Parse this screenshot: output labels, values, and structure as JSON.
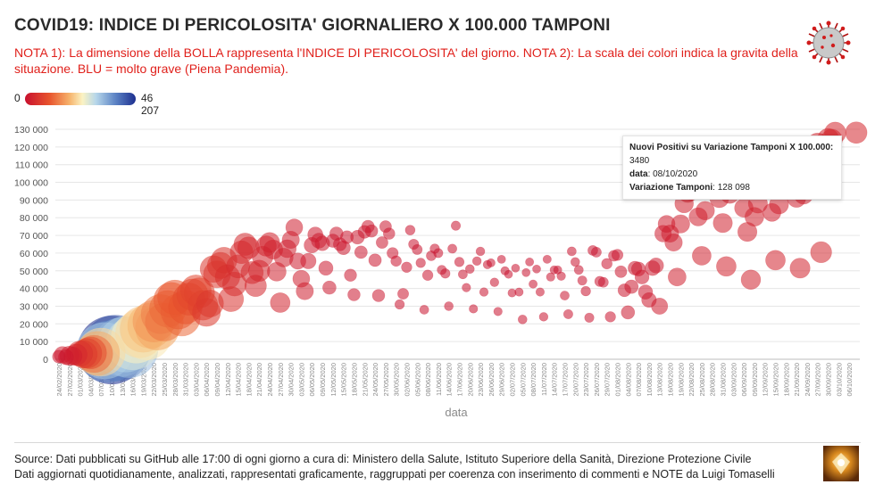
{
  "header": {
    "title": "COVID19: INDICE DI PERICOLOSITA' GIORNALIERO X 100.000 TAMPONI",
    "note": "NOTA 1): La dimensione della BOLLA rappresenta l'INDICE DI PERICOLOSITA' del giorno. NOTA 2): La scala dei colori indica la gravita della situazione. BLU = molto grave (Piena Pandemia)."
  },
  "color_legend": {
    "min": "0",
    "max": "46 207"
  },
  "tooltip": {
    "line1_label": "Nuovi Positivi su Variazione Tamponi X 100.000:",
    "line1_value": "3480",
    "line2_label": "data",
    "line2_value": "08/10/2020",
    "line3_label": "Variazione Tamponi",
    "line3_value": "128 098"
  },
  "footer": {
    "line1": "Source: Dati pubblicati su GitHub alle 17:00 di ogni giorno a cura di: Ministero della Salute, Istituto Superiore della Sanità, Direzione Protezione Civile",
    "line2": "Dati aggiornati quotidianamente, analizzati, rappresentati graficamente, raggruppati per coerenza con inserimento di commenti e NOTE da Luigi Tomaselli"
  },
  "icons": {
    "logo": "coronavirus-icon",
    "badge": "author-badge-icon"
  },
  "colors": {
    "title": "#2a2a2a",
    "note": "#e0201b",
    "low": "#c8102e",
    "high": "#1d2f8f"
  },
  "chart_data": {
    "type": "scatter",
    "subtype": "bubble",
    "xlabel": "data",
    "ylabel": "",
    "ylim": [
      0,
      130000
    ],
    "yticks": [
      0,
      10000,
      20000,
      30000,
      40000,
      50000,
      60000,
      70000,
      80000,
      90000,
      100000,
      110000,
      120000,
      130000
    ],
    "ytick_labels": [
      "0",
      "10 000",
      "20 000",
      "30 000",
      "40 000",
      "50 000",
      "60 000",
      "70 000",
      "80 000",
      "90 000",
      "100 000",
      "110 000",
      "120 000",
      "130 000"
    ],
    "x_start": "2020-02-24",
    "x_end": "2020-10-08",
    "xtick_labels": [
      "24/02/2020",
      "27/02/2020",
      "01/03/2020",
      "04/03/2020",
      "07/03/2020",
      "10/03/2020",
      "13/03/2020",
      "16/03/2020",
      "19/03/2020",
      "22/03/2020",
      "25/03/2020",
      "28/03/2020",
      "31/03/2020",
      "03/04/2020",
      "06/04/2020",
      "09/04/2020",
      "12/04/2020",
      "15/04/2020",
      "18/04/2020",
      "21/04/2020",
      "24/04/2020",
      "27/04/2020",
      "30/04/2020",
      "03/05/2020",
      "06/05/2020",
      "09/05/2020",
      "12/05/2020",
      "15/05/2020",
      "18/05/2020",
      "21/05/2020",
      "24/05/2020",
      "27/05/2020",
      "30/05/2020",
      "02/06/2020",
      "05/06/2020",
      "08/06/2020",
      "11/06/2020",
      "14/06/2020",
      "17/06/2020",
      "20/06/2020",
      "23/06/2020",
      "26/06/2020",
      "29/06/2020",
      "02/07/2020",
      "05/07/2020",
      "08/07/2020",
      "11/07/2020",
      "14/07/2020",
      "17/07/2020",
      "20/07/2020",
      "23/07/2020",
      "26/07/2020",
      "29/07/2020",
      "01/08/2020",
      "04/08/2020",
      "07/08/2020",
      "10/08/2020",
      "13/08/2020",
      "16/08/2020",
      "19/08/2020",
      "22/08/2020",
      "25/08/2020",
      "28/08/2020",
      "31/08/2020",
      "03/09/2020",
      "06/09/2020",
      "09/09/2020",
      "12/09/2020",
      "15/09/2020",
      "18/09/2020",
      "21/09/2020",
      "24/09/2020",
      "27/09/2020",
      "30/09/2020",
      "03/10/2020",
      "06/10/2020"
    ],
    "x_meaning": "date",
    "y_meaning": "Variazione Tamponi",
    "size_color_meaning": "Nuovi Positivi su Variazione Tamponi X 100.000",
    "color_range": [
      0,
      46207
    ],
    "points": [
      [
        "2020-02-24",
        1500,
        900
      ],
      [
        "2020-02-25",
        2500,
        1800
      ],
      [
        "2020-02-26",
        1200,
        1400
      ],
      [
        "2020-02-27",
        2000,
        2600
      ],
      [
        "2020-02-28",
        1800,
        2300
      ],
      [
        "2020-02-29",
        2600,
        3400
      ],
      [
        "2020-03-01",
        3200,
        5200
      ],
      [
        "2020-03-02",
        2800,
        6200
      ],
      [
        "2020-03-03",
        3400,
        7400
      ],
      [
        "2020-03-04",
        3600,
        8800
      ],
      [
        "2020-03-05",
        3000,
        12500
      ],
      [
        "2020-03-06",
        3300,
        18000
      ],
      [
        "2020-03-07",
        4000,
        22000
      ],
      [
        "2020-03-08",
        4800,
        31000
      ],
      [
        "2020-03-09",
        4200,
        37000
      ],
      [
        "2020-03-10",
        5200,
        46207
      ],
      [
        "2020-03-11",
        6500,
        42000
      ],
      [
        "2020-03-12",
        5500,
        39000
      ],
      [
        "2020-03-13",
        7000,
        34000
      ],
      [
        "2020-03-14",
        8500,
        30000
      ],
      [
        "2020-03-15",
        5800,
        32000
      ],
      [
        "2020-03-16",
        9000,
        27000
      ],
      [
        "2020-03-17",
        12000,
        24000
      ],
      [
        "2020-03-18",
        14500,
        22000
      ],
      [
        "2020-03-19",
        17000,
        20000
      ],
      [
        "2020-03-20",
        13500,
        23000
      ],
      [
        "2020-03-21",
        19000,
        19000
      ],
      [
        "2020-03-22",
        21500,
        16000
      ],
      [
        "2020-03-23",
        17500,
        17500
      ],
      [
        "2020-03-24",
        25500,
        14000
      ],
      [
        "2020-03-25",
        21000,
        13000
      ],
      [
        "2020-03-26",
        28500,
        12000
      ],
      [
        "2020-03-27",
        33500,
        11000
      ],
      [
        "2020-03-28",
        35000,
        10500
      ],
      [
        "2020-03-29",
        27000,
        11000
      ],
      [
        "2020-03-30",
        23500,
        12000
      ],
      [
        "2020-03-31",
        29500,
        10000
      ],
      [
        "2020-04-01",
        34000,
        9000
      ],
      [
        "2020-04-02",
        36500,
        8500
      ],
      [
        "2020-04-03",
        39000,
        8000
      ],
      [
        "2020-04-04",
        37500,
        7800
      ],
      [
        "2020-04-05",
        30500,
        7500
      ],
      [
        "2020-04-06",
        26500,
        6500
      ],
      [
        "2020-04-07",
        31500,
        6000
      ],
      [
        "2020-04-08",
        51000,
        5800
      ],
      [
        "2020-04-09",
        48000,
        6000
      ],
      [
        "2020-04-10",
        53000,
        5600
      ],
      [
        "2020-04-11",
        56000,
        5400
      ],
      [
        "2020-04-12",
        46500,
        4800
      ],
      [
        "2020-04-13",
        34000,
        5000
      ],
      [
        "2020-04-14",
        42500,
        4500
      ],
      [
        "2020-04-15",
        52500,
        4200
      ],
      [
        "2020-04-16",
        60500,
        4000
      ],
      [
        "2020-04-17",
        65000,
        3800
      ],
      [
        "2020-04-18",
        63000,
        3600
      ],
      [
        "2020-04-19",
        49000,
        3800
      ],
      [
        "2020-04-20",
        41500,
        3500
      ],
      [
        "2020-04-21",
        50000,
        3400
      ],
      [
        "2020-04-22",
        58000,
        3200
      ],
      [
        "2020-04-23",
        64000,
        3000
      ],
      [
        "2020-04-24",
        66000,
        2900
      ],
      [
        "2020-04-25",
        62000,
        2600
      ],
      [
        "2020-04-26",
        49500,
        2500
      ],
      [
        "2020-04-27",
        32000,
        2800
      ],
      [
        "2020-04-28",
        57500,
        2500
      ],
      [
        "2020-04-29",
        62500,
        2200
      ],
      [
        "2020-04-30",
        67500,
        2000
      ],
      [
        "2020-05-01",
        74500,
        1900
      ],
      [
        "2020-05-02",
        55500,
        1700
      ],
      [
        "2020-05-03",
        45500,
        1900
      ],
      [
        "2020-05-04",
        38500,
        2000
      ],
      [
        "2020-05-05",
        55500,
        1500
      ],
      [
        "2020-05-06",
        64500,
        1500
      ],
      [
        "2020-05-07",
        70500,
        1400
      ],
      [
        "2020-05-08",
        67000,
        1400
      ],
      [
        "2020-05-09",
        65500,
        1300
      ],
      [
        "2020-05-10",
        51500,
        1200
      ],
      [
        "2020-05-11",
        40500,
        1000
      ],
      [
        "2020-05-12",
        67000,
        1000
      ],
      [
        "2020-05-13",
        71000,
        1000
      ],
      [
        "2020-05-14",
        65000,
        950
      ],
      [
        "2020-05-15",
        63000,
        1100
      ],
      [
        "2020-05-16",
        69000,
        900
      ],
      [
        "2020-05-17",
        47500,
        780
      ],
      [
        "2020-05-18",
        36500,
        800
      ],
      [
        "2020-05-19",
        69000,
        1100
      ],
      [
        "2020-05-20",
        60500,
        850
      ],
      [
        "2020-05-21",
        72000,
        900
      ],
      [
        "2020-05-22",
        75000,
        850
      ],
      [
        "2020-05-23",
        72500,
        820
      ],
      [
        "2020-05-24",
        56000,
        850
      ],
      [
        "2020-05-25",
        36000,
        800
      ],
      [
        "2020-05-26",
        66000,
        700
      ],
      [
        "2020-05-27",
        75000,
        700
      ],
      [
        "2020-05-28",
        71000,
        650
      ],
      [
        "2020-05-29",
        60000,
        600
      ],
      [
        "2020-05-30",
        55500,
        500
      ],
      [
        "2020-05-31",
        31000,
        350
      ],
      [
        "2020-06-01",
        37000,
        550
      ],
      [
        "2020-06-02",
        52000,
        480
      ],
      [
        "2020-06-03",
        73000,
        380
      ],
      [
        "2020-06-04",
        65000,
        450
      ],
      [
        "2020-06-05",
        62000,
        430
      ],
      [
        "2020-06-06",
        54500,
        350
      ],
      [
        "2020-06-07",
        28000,
        300
      ],
      [
        "2020-06-08",
        47500,
        480
      ],
      [
        "2020-06-09",
        58500,
        400
      ],
      [
        "2020-06-10",
        62500,
        350
      ],
      [
        "2020-06-11",
        60000,
        320
      ],
      [
        "2020-06-12",
        50500,
        320
      ],
      [
        "2020-06-13",
        48500,
        350
      ],
      [
        "2020-06-14",
        30000,
        280
      ],
      [
        "2020-06-15",
        62500,
        300
      ],
      [
        "2020-06-16",
        75500,
        330
      ],
      [
        "2020-06-17",
        55000,
        350
      ],
      [
        "2020-06-18",
        48000,
        300
      ],
      [
        "2020-06-19",
        40500,
        250
      ],
      [
        "2020-06-20",
        51000,
        280
      ],
      [
        "2020-06-21",
        28500,
        240
      ],
      [
        "2020-06-22",
        55500,
        260
      ],
      [
        "2020-06-23",
        61000,
        270
      ],
      [
        "2020-06-24",
        38000,
        250
      ],
      [
        "2020-06-25",
        53500,
        240
      ],
      [
        "2020-06-26",
        54500,
        220
      ],
      [
        "2020-06-27",
        43500,
        260
      ],
      [
        "2020-06-28",
        27000,
        240
      ],
      [
        "2020-06-29",
        56500,
        210
      ],
      [
        "2020-06-30",
        50000,
        230
      ],
      [
        "2020-07-01",
        48000,
        200
      ],
      [
        "2020-07-02",
        37500,
        210
      ],
      [
        "2020-07-03",
        51500,
        200
      ],
      [
        "2020-07-04",
        38000,
        220
      ],
      [
        "2020-07-05",
        22500,
        280
      ],
      [
        "2020-07-06",
        49000,
        200
      ],
      [
        "2020-07-07",
        55000,
        210
      ],
      [
        "2020-07-08",
        42500,
        220
      ],
      [
        "2020-07-09",
        51000,
        200
      ],
      [
        "2020-07-10",
        38000,
        230
      ],
      [
        "2020-07-11",
        24000,
        260
      ],
      [
        "2020-07-12",
        56500,
        220
      ],
      [
        "2020-07-13",
        46500,
        240
      ],
      [
        "2020-07-14",
        50500,
        220
      ],
      [
        "2020-07-15",
        50500,
        220
      ],
      [
        "2020-07-16",
        47000,
        250
      ],
      [
        "2020-07-17",
        36000,
        300
      ],
      [
        "2020-07-18",
        25500,
        320
      ],
      [
        "2020-07-19",
        61000,
        290
      ],
      [
        "2020-07-20",
        55000,
        280
      ],
      [
        "2020-07-21",
        50500,
        300
      ],
      [
        "2020-07-22",
        44500,
        320
      ],
      [
        "2020-07-23",
        38500,
        360
      ],
      [
        "2020-07-24",
        23500,
        330
      ],
      [
        "2020-07-25",
        61500,
        400
      ],
      [
        "2020-07-26",
        60500,
        420
      ],
      [
        "2020-07-27",
        44000,
        450
      ],
      [
        "2020-07-28",
        43500,
        420
      ],
      [
        "2020-07-29",
        54000,
        500
      ],
      [
        "2020-07-30",
        24000,
        480
      ],
      [
        "2020-07-31",
        58500,
        550
      ],
      [
        "2020-08-01",
        59000,
        600
      ],
      [
        "2020-08-02",
        49500,
        700
      ],
      [
        "2020-08-03",
        39000,
        900
      ],
      [
        "2020-08-04",
        26500,
        1000
      ],
      [
        "2020-08-05",
        41000,
        1050
      ],
      [
        "2020-08-06",
        51500,
        1100
      ],
      [
        "2020-08-07",
        51000,
        1150
      ],
      [
        "2020-08-08",
        46500,
        1150
      ],
      [
        "2020-08-09",
        38000,
        1200
      ],
      [
        "2020-08-10",
        33500,
        1300
      ],
      [
        "2020-08-11",
        51500,
        1350
      ],
      [
        "2020-08-12",
        53000,
        1400
      ],
      [
        "2020-08-13",
        30000,
        1700
      ],
      [
        "2020-08-14",
        71000,
        1800
      ],
      [
        "2020-08-15",
        76500,
        1900
      ],
      [
        "2020-08-16",
        71000,
        2000
      ],
      [
        "2020-08-17",
        66000,
        2050
      ],
      [
        "2020-08-18",
        46500,
        2200
      ],
      [
        "2020-08-19",
        76500,
        2300
      ],
      [
        "2020-08-20",
        88000,
        2400
      ],
      [
        "2020-08-21",
        94000,
        2500
      ],
      [
        "2020-08-22",
        95000,
        2300
      ],
      [
        "2020-08-23",
        96000,
        2200
      ],
      [
        "2020-08-24",
        80500,
        2300
      ],
      [
        "2020-08-25",
        58500,
        2500
      ],
      [
        "2020-08-26",
        84000,
        2400
      ],
      [
        "2020-08-27",
        102000,
        2300
      ],
      [
        "2020-08-28",
        112000,
        2200
      ],
      [
        "2020-08-29",
        107000,
        2200
      ],
      [
        "2020-08-30",
        91000,
        2500
      ],
      [
        "2020-08-31",
        77000,
        2600
      ],
      [
        "2020-09-01",
        52500,
        2800
      ],
      [
        "2020-09-02",
        93500,
        2600
      ],
      [
        "2020-09-03",
        96500,
        2600
      ],
      [
        "2020-09-04",
        97000,
        2500
      ],
      [
        "2020-09-05",
        98000,
        2500
      ],
      [
        "2020-09-06",
        85500,
        2400
      ],
      [
        "2020-09-07",
        72000,
        2600
      ],
      [
        "2020-09-08",
        45000,
        2700
      ],
      [
        "2020-09-09",
        80500,
        2500
      ],
      [
        "2020-09-10",
        88000,
        2600
      ],
      [
        "2020-09-11",
        101000,
        2500
      ],
      [
        "2020-09-12",
        99000,
        2400
      ],
      [
        "2020-09-13",
        103000,
        2300
      ],
      [
        "2020-09-14",
        83000,
        2200
      ],
      [
        "2020-09-15",
        56000,
        2800
      ],
      [
        "2020-09-16",
        87500,
        2600
      ],
      [
        "2020-09-17",
        100500,
        2700
      ],
      [
        "2020-09-18",
        104000,
        2600
      ],
      [
        "2020-09-19",
        106000,
        2600
      ],
      [
        "2020-09-20",
        105000,
        2400
      ],
      [
        "2020-09-21",
        91000,
        2300
      ],
      [
        "2020-09-22",
        51500,
        2900
      ],
      [
        "2020-09-23",
        93000,
        2500
      ],
      [
        "2020-09-24",
        100000,
        2800
      ],
      [
        "2020-09-25",
        118000,
        3000
      ],
      [
        "2020-09-26",
        119000,
        3000
      ],
      [
        "2020-09-27",
        122000,
        3200
      ],
      [
        "2020-09-28",
        60500,
        3300
      ],
      [
        "2020-09-29",
        100500,
        3300
      ],
      [
        "2020-09-30",
        124500,
        3300
      ],
      [
        "2020-10-01",
        124000,
        3400
      ],
      [
        "2020-10-02",
        128000,
        3450
      ],
      [
        "2020-10-08",
        128098,
        3480
      ]
    ]
  }
}
